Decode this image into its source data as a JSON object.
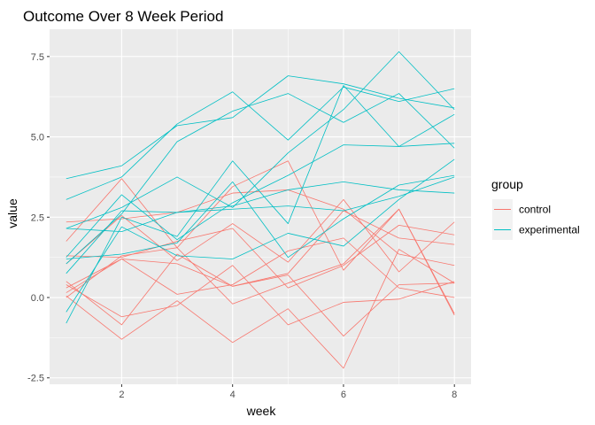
{
  "chart_data": {
    "type": "line",
    "title": "Outcome Over 8 Week Period",
    "xlabel": "week",
    "ylabel": "value",
    "xlim": [
      0.7,
      8.3
    ],
    "ylim": [
      -2.7,
      8.35
    ],
    "x_ticks": [
      2,
      4,
      6,
      8
    ],
    "x_tick_labels": [
      "2",
      "4",
      "6",
      "8"
    ],
    "y_ticks": [
      -2.5,
      0,
      2.5,
      5,
      7.5
    ],
    "y_tick_labels": [
      "-2.5",
      "0.0",
      "2.5",
      "5.0",
      "7.5"
    ],
    "grid": true,
    "panel_background": "#ebebeb",
    "grid_color": "#ffffff",
    "legend": {
      "title": "group",
      "position": "right",
      "entries": [
        {
          "label": "control",
          "color": "#F8766D"
        },
        {
          "label": "experimental",
          "color": "#00BFC4"
        }
      ]
    },
    "x": [
      1,
      2,
      3,
      4,
      5,
      6,
      7,
      8
    ],
    "series": [
      {
        "group": "control",
        "color": "#F8766D",
        "values": [
          2.35,
          2.45,
          2.65,
          3.25,
          3.35,
          2.75,
          1.35,
          1.0
        ]
      },
      {
        "group": "control",
        "color": "#F8766D",
        "values": [
          1.75,
          3.7,
          1.55,
          3.45,
          4.25,
          0.85,
          2.75,
          -0.5
        ]
      },
      {
        "group": "control",
        "color": "#F8766D",
        "values": [
          1.05,
          2.55,
          1.15,
          2.3,
          1.1,
          3.05,
          0.8,
          2.35
        ]
      },
      {
        "group": "control",
        "color": "#F8766D",
        "values": [
          0.5,
          -0.85,
          1.35,
          0.35,
          0.75,
          2.7,
          1.85,
          1.65
        ]
      },
      {
        "group": "control",
        "color": "#F8766D",
        "values": [
          0.3,
          1.2,
          0.1,
          0.4,
          1.45,
          1.85,
          0.3,
          0.0
        ]
      },
      {
        "group": "control",
        "color": "#F8766D",
        "values": [
          0.05,
          -1.3,
          -0.1,
          -1.4,
          -0.35,
          -2.2,
          1.5,
          0.45
        ]
      },
      {
        "group": "control",
        "color": "#F8766D",
        "values": [
          0.4,
          -0.6,
          -0.25,
          1.0,
          -0.85,
          -0.15,
          -0.05,
          0.5
        ]
      },
      {
        "group": "control",
        "color": "#F8766D",
        "values": [
          0.15,
          1.2,
          1.05,
          0.35,
          0.7,
          -1.2,
          0.4,
          0.45
        ]
      },
      {
        "group": "control",
        "color": "#F8766D",
        "values": [
          1.3,
          1.25,
          1.75,
          2.15,
          0.3,
          1.0,
          2.25,
          1.95
        ]
      },
      {
        "group": "control",
        "color": "#F8766D",
        "values": [
          0.0,
          1.3,
          1.55,
          -0.2,
          0.45,
          1.05,
          2.75,
          -0.55
        ]
      },
      {
        "group": "experimental",
        "color": "#00BFC4",
        "values": [
          3.7,
          4.1,
          5.35,
          5.6,
          6.9,
          6.65,
          6.2,
          5.9
        ]
      },
      {
        "group": "experimental",
        "color": "#00BFC4",
        "values": [
          3.05,
          3.75,
          5.4,
          6.4,
          4.9,
          6.55,
          6.1,
          6.5
        ]
      },
      {
        "group": "experimental",
        "color": "#00BFC4",
        "values": [
          2.15,
          2.8,
          3.75,
          2.8,
          4.5,
          5.85,
          7.65,
          5.85
        ]
      },
      {
        "group": "experimental",
        "color": "#00BFC4",
        "values": [
          1.05,
          2.6,
          4.85,
          5.8,
          6.35,
          5.45,
          6.35,
          4.65
        ]
      },
      {
        "group": "experimental",
        "color": "#00BFC4",
        "values": [
          -0.8,
          2.5,
          1.9,
          4.25,
          2.3,
          6.6,
          4.7,
          5.7
        ]
      },
      {
        "group": "experimental",
        "color": "#00BFC4",
        "values": [
          1.25,
          3.2,
          1.8,
          2.95,
          3.8,
          4.75,
          4.7,
          4.8
        ]
      },
      {
        "group": "experimental",
        "color": "#00BFC4",
        "values": [
          0.75,
          2.7,
          2.65,
          2.75,
          2.85,
          2.7,
          3.15,
          3.75
        ]
      },
      {
        "group": "experimental",
        "color": "#00BFC4",
        "values": [
          2.15,
          2.05,
          2.65,
          2.85,
          3.35,
          3.6,
          3.35,
          3.25
        ]
      },
      {
        "group": "experimental",
        "color": "#00BFC4",
        "values": [
          1.2,
          1.35,
          1.7,
          3.6,
          1.25,
          2.45,
          3.5,
          3.8
        ]
      },
      {
        "group": "experimental",
        "color": "#00BFC4",
        "values": [
          -0.45,
          2.2,
          1.3,
          1.2,
          2.0,
          1.6,
          3.05,
          4.3
        ]
      }
    ]
  }
}
